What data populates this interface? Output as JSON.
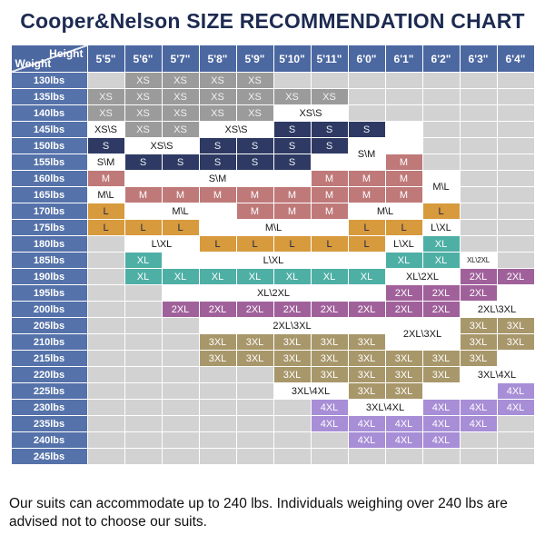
{
  "title": "Cooper&Nelson SIZE RECOMMENDATION CHART",
  "caption": "Our suits can accommodate up to 240 lbs. Individuals weighing over 240 lbs are advised not to choose our suits.",
  "chart_data": {
    "type": "table",
    "title": "Cooper&Nelson SIZE RECOMMENDATION CHART",
    "x_axis_label": "Height",
    "y_axis_label": "Weight",
    "columns": [
      "5'5\"",
      "5'6\"",
      "5'7\"",
      "5'8\"",
      "5'9\"",
      "5'10\"",
      "5'11\"",
      "6'0\"",
      "6'1\"",
      "6'2\"",
      "6'3\"",
      "6'4\""
    ],
    "palette": {
      "title_color": "#1d2b52",
      "header_bg": "#4c68a1",
      "header_text": "#ffffff",
      "weight_label_bg": "#5572aa",
      "grid_line": "#ffffff",
      "empty_bg": "#d2d2d3",
      "blank_bg": "#ffffff",
      "split_bg": "#ffffff",
      "split_text": "#161616",
      "sizes": {
        "xs": {
          "bg": "#9b9b9b",
          "text": "#f2f2f2",
          "label": "XS"
        },
        "s": {
          "bg": "#2e3a63",
          "text": "#eef1f7",
          "label": "S"
        },
        "m": {
          "bg": "#bf7979",
          "text": "#ffffff",
          "label": "M"
        },
        "l": {
          "bg": "#d79a3d",
          "text": "#1c2747",
          "label": "L"
        },
        "xl": {
          "bg": "#4eafa5",
          "text": "#ffffff",
          "label": "XL"
        },
        "x2": {
          "bg": "#a0619b",
          "text": "#ffffff",
          "label": "2XL"
        },
        "x3": {
          "bg": "#a8976a",
          "text": "#ffffff",
          "label": "3XL"
        },
        "x4": {
          "bg": "#a78ed6",
          "text": "#ffffff",
          "label": "4XL"
        }
      }
    },
    "rows": [
      {
        "weight": "130lbs",
        "cells": [
          [
            "",
            "e"
          ],
          [
            "XS",
            "xs"
          ],
          [
            "XS",
            "xs"
          ],
          [
            "XS",
            "xs"
          ],
          [
            "XS",
            "xs"
          ],
          [
            "",
            "e"
          ],
          [
            "",
            "e"
          ],
          [
            "",
            "e"
          ],
          [
            "",
            "e"
          ],
          [
            "",
            "e"
          ],
          [
            "",
            "e"
          ],
          [
            "",
            "e"
          ]
        ]
      },
      {
        "weight": "135lbs",
        "cells": [
          [
            "XS",
            "xs"
          ],
          [
            "XS",
            "xs"
          ],
          [
            "XS",
            "xs"
          ],
          [
            "XS",
            "xs"
          ],
          [
            "XS",
            "xs"
          ],
          [
            "XS",
            "xs"
          ],
          [
            "XS",
            "xs"
          ],
          [
            "",
            "e"
          ],
          [
            "",
            "e"
          ],
          [
            "",
            "e"
          ],
          [
            "",
            "e"
          ],
          [
            "",
            "e"
          ]
        ]
      },
      {
        "weight": "140lbs",
        "cells": [
          [
            "XS",
            "xs"
          ],
          [
            "XS",
            "xs"
          ],
          [
            "XS",
            "xs"
          ],
          [
            "XS",
            "xs"
          ],
          [
            "XS",
            "xs"
          ],
          [
            "XS\\S",
            "sp",
            2
          ],
          [
            "",
            "e"
          ],
          [
            "",
            "e"
          ],
          [
            "",
            "e"
          ],
          [
            "",
            "e"
          ],
          [
            "",
            "e"
          ]
        ]
      },
      {
        "weight": "145lbs",
        "cells": [
          [
            "XS\\S",
            "sp"
          ],
          [
            "XS",
            "xs"
          ],
          [
            "XS",
            "xs"
          ],
          [
            "XS\\S",
            "sp",
            2
          ],
          [
            "S",
            "s"
          ],
          [
            "S",
            "s"
          ],
          [
            "S",
            "s"
          ],
          [
            "",
            "w"
          ],
          [
            "",
            "e"
          ],
          [
            "",
            "e"
          ],
          [
            "",
            "e"
          ]
        ]
      },
      {
        "weight": "150lbs",
        "cells": [
          [
            "S",
            "s"
          ],
          [
            "XS\\S",
            "sp",
            2
          ],
          [
            "S",
            "s"
          ],
          [
            "S",
            "s"
          ],
          [
            "S",
            "s"
          ],
          [
            "S",
            "s"
          ],
          [
            "S\\M",
            "sp",
            1,
            2
          ],
          [
            "",
            "w"
          ],
          [
            "",
            "e"
          ],
          [
            "",
            "e"
          ],
          [
            "",
            "e"
          ]
        ]
      },
      {
        "weight": "155lbs",
        "cells": [
          [
            "S\\M",
            "sp"
          ],
          [
            "S",
            "s"
          ],
          [
            "S",
            "s"
          ],
          [
            "S",
            "s"
          ],
          [
            "S",
            "s"
          ],
          [
            "S",
            "s"
          ],
          [
            "",
            "w"
          ],
          [
            "M",
            "m"
          ],
          [
            "",
            "e"
          ],
          [
            "",
            "e"
          ],
          [
            "",
            "e"
          ]
        ]
      },
      {
        "weight": "160lbs",
        "cells": [
          [
            "M",
            "m"
          ],
          [
            "S\\M",
            "sp",
            5
          ],
          [
            "M",
            "m"
          ],
          [
            "M",
            "m"
          ],
          [
            "M",
            "m"
          ],
          [
            "M\\L",
            "sp",
            1,
            2
          ],
          [
            "",
            "e"
          ],
          [
            "",
            "e"
          ]
        ]
      },
      {
        "weight": "165lbs",
        "cells": [
          [
            "M\\L",
            "sp"
          ],
          [
            "M",
            "m"
          ],
          [
            "M",
            "m"
          ],
          [
            "M",
            "m"
          ],
          [
            "M",
            "m"
          ],
          [
            "M",
            "m"
          ],
          [
            "M",
            "m"
          ],
          [
            "M",
            "m"
          ],
          [
            "M",
            "m"
          ],
          [
            "",
            "e"
          ],
          [
            "",
            "e"
          ]
        ]
      },
      {
        "weight": "170lbs",
        "cells": [
          [
            "L",
            "l"
          ],
          [
            "M\\L",
            "sp",
            3
          ],
          [
            "M",
            "m"
          ],
          [
            "M",
            "m"
          ],
          [
            "M",
            "m"
          ],
          [
            "M\\L",
            "sp",
            2
          ],
          [
            "L",
            "l"
          ],
          [
            "",
            "e"
          ],
          [
            "",
            "e"
          ]
        ]
      },
      {
        "weight": "175lbs",
        "cells": [
          [
            "L",
            "l"
          ],
          [
            "L",
            "l"
          ],
          [
            "L",
            "l"
          ],
          [
            "M\\L",
            "sp",
            4
          ],
          [
            "L",
            "l"
          ],
          [
            "L",
            "l"
          ],
          [
            "L\\XL",
            "sp"
          ],
          [
            "",
            "e"
          ],
          [
            "",
            "e"
          ]
        ]
      },
      {
        "weight": "180lbs",
        "cells": [
          [
            "",
            "e"
          ],
          [
            "L\\XL",
            "sp",
            2
          ],
          [
            "L",
            "l"
          ],
          [
            "L",
            "l"
          ],
          [
            "L",
            "l"
          ],
          [
            "L",
            "l"
          ],
          [
            "L",
            "l"
          ],
          [
            "L\\XL",
            "sp"
          ],
          [
            "XL",
            "xl"
          ],
          [
            "",
            "e"
          ],
          [
            "",
            "e"
          ]
        ]
      },
      {
        "weight": "185lbs",
        "cells": [
          [
            "",
            "e"
          ],
          [
            "XL",
            "xl"
          ],
          [
            "L\\XL",
            "sp",
            6
          ],
          [
            "XL",
            "xl"
          ],
          [
            "XL",
            "xl"
          ],
          [
            "XL\\2XL",
            "sps"
          ],
          [
            "",
            "e"
          ]
        ]
      },
      {
        "weight": "190lbs",
        "cells": [
          [
            "",
            "e"
          ],
          [
            "XL",
            "xl"
          ],
          [
            "XL",
            "xl"
          ],
          [
            "XL",
            "xl"
          ],
          [
            "XL",
            "xl"
          ],
          [
            "XL",
            "xl"
          ],
          [
            "XL",
            "xl"
          ],
          [
            "XL",
            "xl"
          ],
          [
            "XL\\2XL",
            "sp",
            2
          ],
          [
            "2XL",
            "x2"
          ],
          [
            "2XL",
            "x2"
          ]
        ]
      },
      {
        "weight": "195lbs",
        "cells": [
          [
            "",
            "e"
          ],
          [
            "",
            "e"
          ],
          [
            "XL\\2XL",
            "sp",
            6
          ],
          [
            "2XL",
            "x2"
          ],
          [
            "2XL",
            "x2"
          ],
          [
            "2XL",
            "x2"
          ],
          [
            "",
            "w"
          ]
        ]
      },
      {
        "weight": "200lbs",
        "cells": [
          [
            "",
            "e"
          ],
          [
            "",
            "e"
          ],
          [
            "2XL",
            "x2"
          ],
          [
            "2XL",
            "x2"
          ],
          [
            "2XL",
            "x2"
          ],
          [
            "2XL",
            "x2"
          ],
          [
            "2XL",
            "x2"
          ],
          [
            "2XL",
            "x2"
          ],
          [
            "2XL",
            "x2"
          ],
          [
            "2XL",
            "x2"
          ],
          [
            "2XL\\3XL",
            "sp",
            2
          ]
        ]
      },
      {
        "weight": "205lbs",
        "cells": [
          [
            "",
            "e"
          ],
          [
            "",
            "e"
          ],
          [
            "",
            "e"
          ],
          [
            "2XL\\3XL",
            "sp",
            5
          ],
          [
            "2XL\\3XL",
            "sp",
            2,
            2
          ],
          [
            "3XL",
            "x3"
          ],
          [
            "3XL",
            "x3"
          ]
        ]
      },
      {
        "weight": "210lbs",
        "cells": [
          [
            "",
            "e"
          ],
          [
            "",
            "e"
          ],
          [
            "",
            "e"
          ],
          [
            "3XL",
            "x3"
          ],
          [
            "3XL",
            "x3"
          ],
          [
            "3XL",
            "x3"
          ],
          [
            "3XL",
            "x3"
          ],
          [
            "3XL",
            "x3"
          ],
          [
            "3XL",
            "x3"
          ],
          [
            "3XL",
            "x3"
          ]
        ]
      },
      {
        "weight": "215lbs",
        "cells": [
          [
            "",
            "e"
          ],
          [
            "",
            "e"
          ],
          [
            "",
            "e"
          ],
          [
            "3XL",
            "x3"
          ],
          [
            "3XL",
            "x3"
          ],
          [
            "3XL",
            "x3"
          ],
          [
            "3XL",
            "x3"
          ],
          [
            "3XL",
            "x3"
          ],
          [
            "3XL",
            "x3"
          ],
          [
            "3XL",
            "x3"
          ],
          [
            "3XL",
            "x3"
          ],
          [
            "",
            "w"
          ]
        ]
      },
      {
        "weight": "220lbs",
        "cells": [
          [
            "",
            "e"
          ],
          [
            "",
            "e"
          ],
          [
            "",
            "e"
          ],
          [
            "",
            "e"
          ],
          [
            "",
            "e"
          ],
          [
            "3XL",
            "x3"
          ],
          [
            "3XL",
            "x3"
          ],
          [
            "3XL",
            "x3"
          ],
          [
            "3XL",
            "x3"
          ],
          [
            "3XL",
            "x3"
          ],
          [
            "3XL\\4XL",
            "sp",
            2
          ]
        ]
      },
      {
        "weight": "225lbs",
        "cells": [
          [
            "",
            "e"
          ],
          [
            "",
            "e"
          ],
          [
            "",
            "e"
          ],
          [
            "",
            "e"
          ],
          [
            "",
            "e"
          ],
          [
            "3XL\\4XL",
            "sp",
            2
          ],
          [
            "3XL",
            "x3"
          ],
          [
            "3XL",
            "x3"
          ],
          [
            "",
            "w",
            2
          ],
          [
            "4XL",
            "x4"
          ]
        ]
      },
      {
        "weight": "230lbs",
        "cells": [
          [
            "",
            "e"
          ],
          [
            "",
            "e"
          ],
          [
            "",
            "e"
          ],
          [
            "",
            "e"
          ],
          [
            "",
            "e"
          ],
          [
            "",
            "e"
          ],
          [
            "4XL",
            "x4"
          ],
          [
            "3XL\\4XL",
            "sp",
            2
          ],
          [
            "4XL",
            "x4"
          ],
          [
            "4XL",
            "x4"
          ],
          [
            "4XL",
            "x4"
          ]
        ]
      },
      {
        "weight": "235lbs",
        "cells": [
          [
            "",
            "e"
          ],
          [
            "",
            "e"
          ],
          [
            "",
            "e"
          ],
          [
            "",
            "e"
          ],
          [
            "",
            "e"
          ],
          [
            "",
            "e"
          ],
          [
            "4XL",
            "x4"
          ],
          [
            "4XL",
            "x4"
          ],
          [
            "4XL",
            "x4"
          ],
          [
            "4XL",
            "x4"
          ],
          [
            "4XL",
            "x4"
          ],
          [
            "",
            "e"
          ]
        ]
      },
      {
        "weight": "240lbs",
        "cells": [
          [
            "",
            "e"
          ],
          [
            "",
            "e"
          ],
          [
            "",
            "e"
          ],
          [
            "",
            "e"
          ],
          [
            "",
            "e"
          ],
          [
            "",
            "e"
          ],
          [
            "",
            "e"
          ],
          [
            "4XL",
            "x4"
          ],
          [
            "4XL",
            "x4"
          ],
          [
            "4XL",
            "x4"
          ],
          [
            "",
            "e"
          ],
          [
            "",
            "e"
          ]
        ]
      },
      {
        "weight": "245lbs",
        "cells": [
          [
            "",
            "e"
          ],
          [
            "",
            "e"
          ],
          [
            "",
            "e"
          ],
          [
            "",
            "e"
          ],
          [
            "",
            "e"
          ],
          [
            "",
            "e"
          ],
          [
            "",
            "e"
          ],
          [
            "",
            "e"
          ],
          [
            "",
            "e"
          ],
          [
            "",
            "e"
          ],
          [
            "",
            "e"
          ],
          [
            "",
            "e"
          ]
        ]
      }
    ]
  }
}
